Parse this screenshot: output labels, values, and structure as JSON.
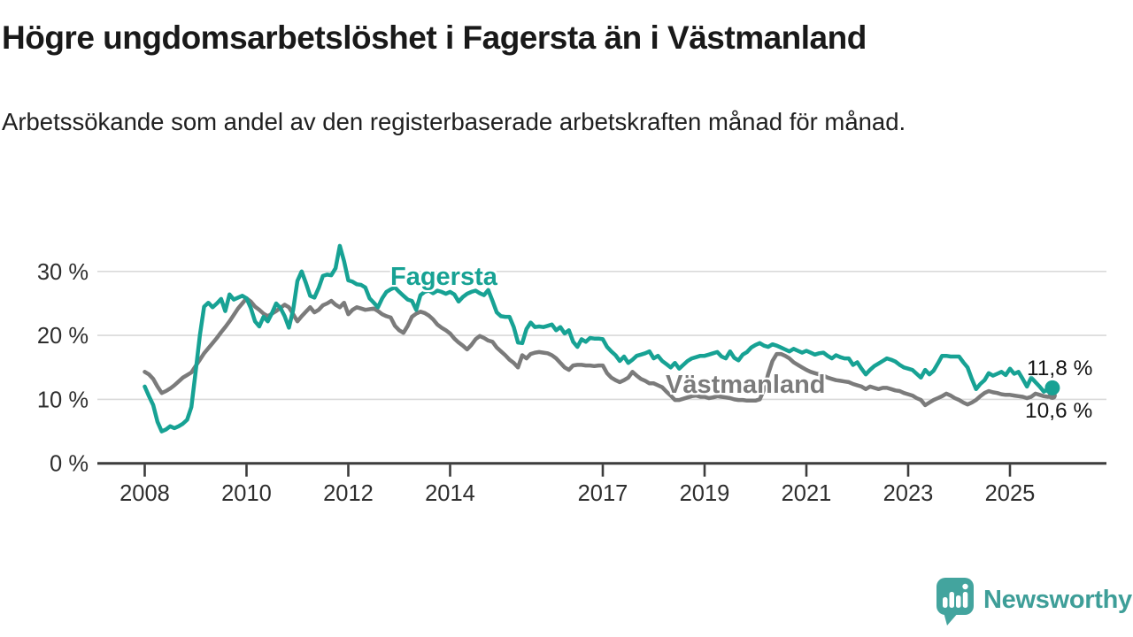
{
  "header": {
    "title": "Högre ungdomsarbetslöshet i Fagersta än i Västmanland",
    "subtitle": "Arbetssökande som andel av den registerbaserade arbetskraften månad för månad."
  },
  "attribution": {
    "brand_name": "Newsworthy"
  },
  "colors": {
    "fagersta": "#17a294",
    "vastmanland": "#7b7b7b",
    "gridline": "#d9d9d9",
    "axis": "#3c3c3c",
    "tick_text": "#2e2e2e",
    "logo": "#43a49e"
  },
  "chart_data": {
    "type": "line",
    "title": "Högre ungdomsarbetslöshet i Fagersta än i Västmanland",
    "subtitle": "Arbetssökande som andel av den registerbaserade arbetskraften månad för månad.",
    "unit": "%",
    "x_start_year": 2008,
    "x_step_months": 1,
    "x_tick_years": [
      2008,
      2010,
      2012,
      2014,
      2017,
      2019,
      2021,
      2023,
      2025
    ],
    "x_tick_labels": [
      "2008",
      "2010",
      "2012",
      "2014",
      "2017",
      "2019",
      "2021",
      "2023",
      "2025"
    ],
    "y_tick_values": [
      0,
      10,
      20,
      30
    ],
    "y_tick_labels": [
      "0 %",
      "10 %",
      "20 %",
      "30 %"
    ],
    "ylim": [
      0,
      35
    ],
    "grid": "horizontal",
    "legend": "inline-labels",
    "series": [
      {
        "name": "Fagersta",
        "color": "#17a294",
        "end_value": 11.8,
        "end_label": "11,8 %",
        "end_dot_radius": 8.5,
        "values": [
          12.0,
          10.5,
          9.1,
          6.5,
          5.0,
          5.3,
          5.8,
          5.5,
          5.8,
          6.2,
          6.8,
          8.8,
          14.3,
          20.0,
          24.5,
          25.1,
          24.4,
          25.0,
          25.7,
          23.8,
          26.4,
          25.6,
          25.9,
          26.2,
          25.8,
          24.3,
          22.2,
          21.4,
          22.9,
          22.2,
          23.5,
          25.0,
          24.3,
          23.0,
          21.2,
          24.0,
          28.5,
          30.0,
          28.2,
          26.2,
          25.9,
          27.4,
          29.3,
          29.5,
          29.4,
          30.5,
          34.0,
          31.6,
          28.6,
          28.4,
          28.0,
          27.9,
          27.5,
          25.8,
          25.1,
          24.4,
          25.8,
          26.8,
          27.2,
          27.5,
          26.8,
          26.2,
          25.6,
          25.4,
          24.0,
          26.3,
          26.8,
          27.0,
          26.6,
          27.0,
          26.8,
          26.5,
          26.8,
          26.4,
          25.3,
          26.0,
          26.5,
          26.8,
          27.0,
          26.6,
          26.3,
          27.1,
          25.4,
          23.6,
          23.0,
          22.9,
          22.9,
          21.3,
          18.9,
          18.8,
          21.0,
          22.0,
          21.3,
          21.4,
          21.3,
          21.5,
          21.7,
          20.8,
          21.3,
          20.3,
          20.8,
          19.0,
          18.2,
          19.4,
          19.0,
          19.6,
          19.5,
          19.5,
          19.4,
          18.2,
          17.5,
          16.9,
          16.0,
          16.7,
          15.7,
          16.2,
          16.8,
          17.0,
          17.2,
          17.5,
          16.4,
          16.8,
          16.0,
          15.5,
          15.0,
          15.7,
          14.8,
          15.4,
          16.0,
          16.4,
          16.6,
          16.8,
          16.8,
          17.0,
          17.2,
          17.4,
          16.7,
          16.4,
          17.5,
          16.5,
          16.1,
          17.0,
          17.4,
          18.1,
          18.5,
          18.8,
          18.4,
          18.2,
          18.6,
          18.4,
          18.1,
          17.8,
          17.5,
          17.9,
          17.6,
          17.3,
          17.6,
          17.3,
          17.0,
          17.2,
          17.3,
          16.8,
          16.4,
          16.9,
          16.6,
          16.4,
          16.4,
          15.4,
          15.8,
          14.8,
          13.9,
          14.6,
          15.2,
          15.6,
          16.0,
          16.4,
          16.2,
          15.9,
          15.4,
          15.0,
          14.8,
          14.6,
          14.0,
          13.4,
          14.6,
          13.9,
          14.5,
          15.6,
          16.8,
          16.8,
          16.7,
          16.7,
          16.7,
          15.8,
          15.0,
          13.2,
          11.6,
          12.4,
          13.0,
          14.1,
          13.7,
          14.0,
          14.3,
          13.8,
          14.8,
          14.0,
          14.3,
          13.2,
          12.0,
          13.4,
          12.7,
          12.0,
          11.2,
          11.6,
          11.8
        ]
      },
      {
        "name": "Västmanland",
        "color": "#7b7b7b",
        "end_value": 10.6,
        "end_label": "10,6 %",
        "end_dot_radius": 5,
        "values": [
          14.3,
          13.9,
          13.2,
          12.0,
          11.0,
          11.3,
          11.7,
          12.2,
          12.8,
          13.4,
          13.8,
          14.2,
          15.2,
          16.2,
          17.2,
          18.0,
          18.8,
          19.6,
          20.5,
          21.3,
          22.2,
          23.2,
          24.2,
          25.0,
          25.8,
          25.3,
          24.5,
          24.0,
          23.4,
          23.0,
          23.4,
          23.8,
          24.3,
          24.8,
          24.4,
          23.3,
          22.2,
          23.0,
          23.7,
          24.4,
          23.6,
          24.0,
          24.7,
          25.0,
          25.4,
          24.8,
          24.4,
          25.1,
          23.3,
          24.0,
          24.4,
          24.2,
          24.0,
          24.1,
          24.2,
          23.8,
          23.3,
          23.0,
          22.8,
          21.5,
          20.8,
          20.4,
          21.5,
          22.9,
          23.4,
          23.7,
          23.5,
          23.1,
          22.5,
          21.7,
          21.2,
          20.8,
          20.3,
          19.5,
          18.9,
          18.4,
          17.8,
          18.5,
          19.4,
          19.9,
          19.6,
          19.2,
          19.0,
          18.1,
          17.5,
          16.9,
          16.2,
          15.7,
          15.0,
          16.9,
          16.4,
          17.1,
          17.3,
          17.4,
          17.3,
          17.2,
          16.9,
          16.4,
          15.7,
          15.0,
          14.6,
          15.3,
          15.4,
          15.4,
          15.3,
          15.3,
          15.2,
          15.3,
          15.3,
          14.1,
          13.4,
          13.0,
          12.7,
          13.0,
          13.4,
          14.3,
          13.7,
          13.2,
          12.9,
          12.5,
          12.5,
          12.2,
          11.9,
          11.2,
          10.6,
          9.9,
          9.9,
          10.1,
          10.3,
          10.5,
          10.6,
          10.4,
          10.4,
          10.2,
          10.3,
          10.5,
          10.4,
          10.3,
          10.2,
          10.0,
          9.9,
          9.9,
          9.8,
          9.8,
          9.8,
          10.0,
          11.5,
          14.0,
          16.0,
          17.1,
          17.1,
          16.8,
          16.4,
          15.8,
          15.4,
          15.0,
          14.6,
          14.3,
          14.1,
          13.9,
          13.7,
          13.4,
          13.2,
          13.0,
          12.9,
          12.8,
          12.7,
          12.4,
          12.2,
          12.0,
          11.6,
          12.0,
          11.8,
          11.6,
          11.8,
          11.8,
          11.6,
          11.4,
          11.3,
          11.0,
          10.8,
          10.6,
          10.2,
          9.9,
          9.1,
          9.5,
          9.9,
          10.2,
          10.5,
          10.9,
          10.6,
          10.2,
          9.9,
          9.5,
          9.2,
          9.5,
          9.9,
          10.5,
          11.0,
          11.3,
          11.1,
          11.0,
          10.8,
          10.7,
          10.7,
          10.6,
          10.5,
          10.4,
          10.2,
          10.4,
          10.9,
          10.7,
          10.5,
          10.4,
          10.6
        ]
      }
    ]
  }
}
